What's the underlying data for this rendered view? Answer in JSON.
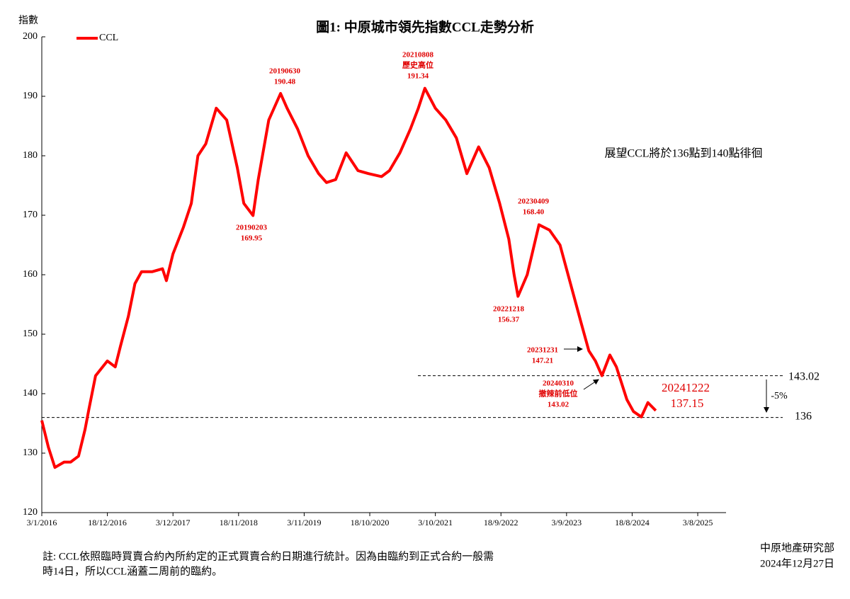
{
  "chart_data": {
    "type": "line",
    "title": "圖1: 中原城市領先指數CCL走勢分析",
    "y_label": "指數",
    "x": [
      "2016-01-03",
      "2016-02-07",
      "2016-03-13",
      "2016-05-01",
      "2016-06-05",
      "2016-07-17",
      "2016-08-21",
      "2016-09-11",
      "2016-10-16",
      "2016-12-18",
      "2017-01-29",
      "2017-02-26",
      "2017-04-09",
      "2017-05-14",
      "2017-06-18",
      "2017-08-13",
      "2017-10-08",
      "2017-10-29",
      "2017-12-03",
      "2018-01-28",
      "2018-03-11",
      "2018-04-15",
      "2018-05-27",
      "2018-07-22",
      "2018-09-16",
      "2018-11-11",
      "2018-12-16",
      "2019-02-03",
      "2019-03-03",
      "2019-04-28",
      "2019-06-30",
      "2019-08-04",
      "2019-09-29",
      "2019-11-24",
      "2020-01-19",
      "2020-03-01",
      "2020-04-19",
      "2020-06-14",
      "2020-08-16",
      "2020-10-11",
      "2020-12-20",
      "2021-01-31",
      "2021-03-28",
      "2021-05-23",
      "2021-07-04",
      "2021-08-08",
      "2021-10-03",
      "2021-11-28",
      "2022-01-23",
      "2022-03-20",
      "2022-05-22",
      "2022-07-17",
      "2022-09-11",
      "2022-10-30",
      "2022-11-27",
      "2022-12-18",
      "2023-02-05",
      "2023-04-09",
      "2023-06-04",
      "2023-07-30",
      "2023-09-24",
      "2023-11-19",
      "2023-12-31",
      "2024-02-04",
      "2024-03-10",
      "2024-04-21",
      "2024-05-26",
      "2024-07-21",
      "2024-08-25",
      "2024-10-06",
      "2024-11-10",
      "2024-12-22"
    ],
    "series": [
      {
        "name": "CCL",
        "color": "#ff0000",
        "values": [
          135.5,
          131,
          127.6,
          128.5,
          128.5,
          129.5,
          134,
          137.5,
          143,
          145.5,
          144.5,
          148,
          153,
          158.5,
          160.5,
          160.5,
          161,
          159,
          163.5,
          168,
          172,
          180,
          182,
          188,
          186,
          178,
          172,
          169.95,
          176,
          186,
          190.48,
          188,
          184.5,
          180,
          177,
          175.5,
          176,
          180.5,
          177.5,
          177,
          176.5,
          177.5,
          180.5,
          184.5,
          188,
          191.34,
          188,
          186,
          183,
          177,
          181.5,
          178,
          172,
          166,
          160,
          156.37,
          160,
          168.4,
          167.5,
          165,
          158.5,
          152,
          147.21,
          145.5,
          143.02,
          146.5,
          144.5,
          139,
          137,
          136.1,
          138.5,
          137.15
        ]
      }
    ],
    "xlim": [
      "2016-01-03",
      "2026-01-01"
    ],
    "xticks": [
      {
        "value": "2016-01-03",
        "label": "3/1/2016"
      },
      {
        "value": "2016-12-18",
        "label": "18/12/2016"
      },
      {
        "value": "2017-12-03",
        "label": "3/12/2017"
      },
      {
        "value": "2018-11-18",
        "label": "18/11/2018"
      },
      {
        "value": "2019-11-03",
        "label": "3/11/2019"
      },
      {
        "value": "2020-10-18",
        "label": "18/10/2020"
      },
      {
        "value": "2021-10-03",
        "label": "3/10/2021"
      },
      {
        "value": "2022-09-18",
        "label": "18/9/2022"
      },
      {
        "value": "2023-09-03",
        "label": "3/9/2023"
      },
      {
        "value": "2024-08-18",
        "label": "18/8/2024"
      },
      {
        "value": "2025-08-03",
        "label": "3/8/2025"
      }
    ],
    "ylim": [
      120,
      200
    ],
    "yticks": [
      120,
      130,
      140,
      150,
      160,
      170,
      180,
      190,
      200
    ],
    "annotations": [
      {
        "date": "20190203",
        "value": 169.95
      },
      {
        "date": "20190630",
        "value": 190.48
      },
      {
        "date": "20210808",
        "note": "歷史高位",
        "value": 191.34
      },
      {
        "date": "20221218",
        "value": 156.37
      },
      {
        "date": "20230409",
        "value": 168.4,
        "value_label": "168.40"
      },
      {
        "date": "20231231",
        "value": 147.21
      },
      {
        "date": "20240310",
        "note": "撤辣前低位",
        "value": 143.02
      },
      {
        "date": "20241222",
        "value": 137.15
      }
    ],
    "reference_lines": [
      {
        "value": 143.02
      },
      {
        "value": 136
      }
    ],
    "change_label": "-5%",
    "outlook": "展望CCL將於136點到140點徘徊",
    "footnote": [
      "註: CCL依照臨時買賣合約內所約定的正式買賣合約日期進行統計。因為由臨約到正式合約一般需",
      "時14日，所以CCL涵蓋二周前的臨約。"
    ],
    "source": [
      "中原地產研究部",
      "2024年12月27日"
    ]
  }
}
